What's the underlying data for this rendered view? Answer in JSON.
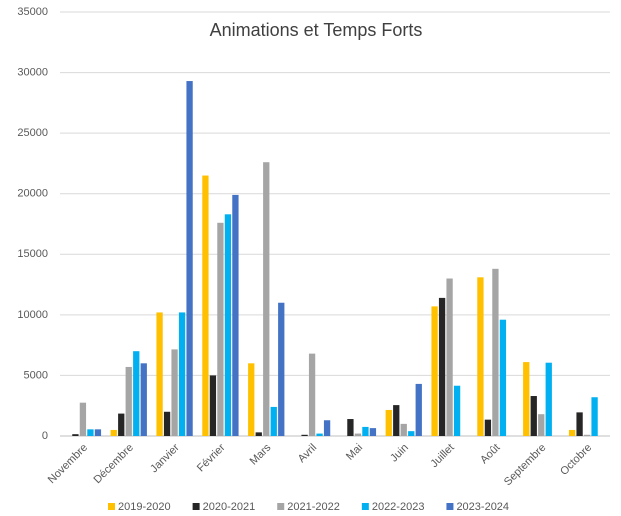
{
  "chart_data": {
    "type": "bar",
    "title": "Animations et Temps Forts",
    "categories": [
      "Novembre",
      "Décembre",
      "Janvier",
      "Février",
      "Mars",
      "Avril",
      "Mai",
      "Juin",
      "Juillet",
      "Août",
      "Septembre",
      "Octobre"
    ],
    "series": [
      {
        "name": "2019-2020",
        "color": "#ffc000",
        "values": [
          0,
          500,
          10200,
          21500,
          6000,
          0,
          0,
          2150,
          10700,
          13100,
          6100,
          500
        ]
      },
      {
        "name": "2020-2021",
        "color": "#262626",
        "values": [
          150,
          1850,
          2000,
          5000,
          300,
          100,
          1400,
          2550,
          11400,
          1350,
          3300,
          1950
        ]
      },
      {
        "name": "2021-2022",
        "color": "#a5a5a5",
        "values": [
          2750,
          5700,
          7150,
          17600,
          22600,
          6800,
          200,
          1000,
          13000,
          13800,
          1800,
          100
        ]
      },
      {
        "name": "2022-2023",
        "color": "#00b0f0",
        "values": [
          550,
          7000,
          10200,
          18300,
          2400,
          200,
          750,
          400,
          4150,
          9600,
          6050,
          3200
        ]
      },
      {
        "name": "2023-2024",
        "color": "#4472c4",
        "values": [
          550,
          6000,
          29300,
          19900,
          11000,
          1300,
          650,
          4300,
          null,
          null,
          null,
          null
        ]
      }
    ],
    "ylim": [
      0,
      35000
    ],
    "yticks": [
      0,
      5000,
      10000,
      15000,
      20000,
      25000,
      30000,
      35000
    ],
    "grid": true,
    "legend": "bottom"
  }
}
